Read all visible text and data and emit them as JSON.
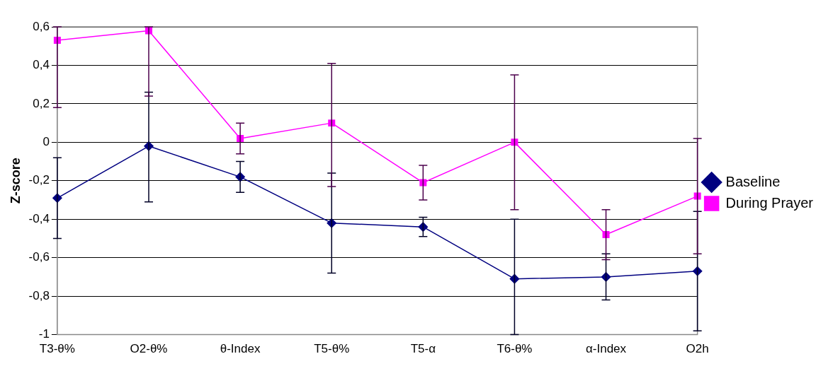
{
  "chart_data": {
    "type": "line",
    "ylabel": "Z-score",
    "categories": [
      "T3-θ%",
      "O2-θ%",
      "θ-Index",
      "T5-θ%",
      "T5-α",
      "T6-θ%",
      "α-Index",
      "O2h"
    ],
    "ylim": [
      -1,
      0.6
    ],
    "yticks": [
      -1,
      {
        "value": -0.8,
        "label": "-0,8"
      },
      {
        "value": -0.6,
        "label": "-0,6"
      },
      {
        "value": -0.4,
        "label": "-0,4"
      },
      {
        "value": -0.2,
        "label": "-0,2"
      },
      0,
      {
        "value": 0.2,
        "label": "0,2"
      },
      {
        "value": 0.4,
        "label": "0,4"
      },
      {
        "value": 0.6,
        "label": "0,6"
      }
    ],
    "grid": "y",
    "legend": "right",
    "line_style": "solid",
    "series": [
      {
        "name": "Baseline",
        "color": "#000080",
        "marker": "diamond",
        "values": [
          -0.29,
          -0.02,
          -0.18,
          -0.42,
          -0.44,
          -0.71,
          -0.7,
          -0.67
        ],
        "errors": [
          [
            -0.5,
            -0.08
          ],
          [
            -0.31,
            0.26
          ],
          [
            -0.26,
            -0.1
          ],
          [
            -0.68,
            -0.16
          ],
          [
            -0.49,
            -0.39
          ],
          [
            -1.0,
            -0.4
          ],
          [
            -0.82,
            -0.58
          ],
          [
            -0.98,
            -0.36
          ]
        ]
      },
      {
        "name": "During Prayer",
        "color": "#ff00ff",
        "marker": "square",
        "values": [
          0.53,
          0.58,
          0.02,
          0.1,
          -0.21,
          0.0,
          -0.48,
          -0.28
        ],
        "errors": [
          [
            0.18,
            0.6
          ],
          [
            0.24,
            0.6
          ],
          [
            -0.06,
            0.1
          ],
          [
            -0.23,
            0.41
          ],
          [
            -0.3,
            -0.12
          ],
          [
            -0.35,
            0.35
          ],
          [
            -0.61,
            -0.35
          ],
          [
            -0.58,
            0.02
          ]
        ]
      }
    ]
  }
}
